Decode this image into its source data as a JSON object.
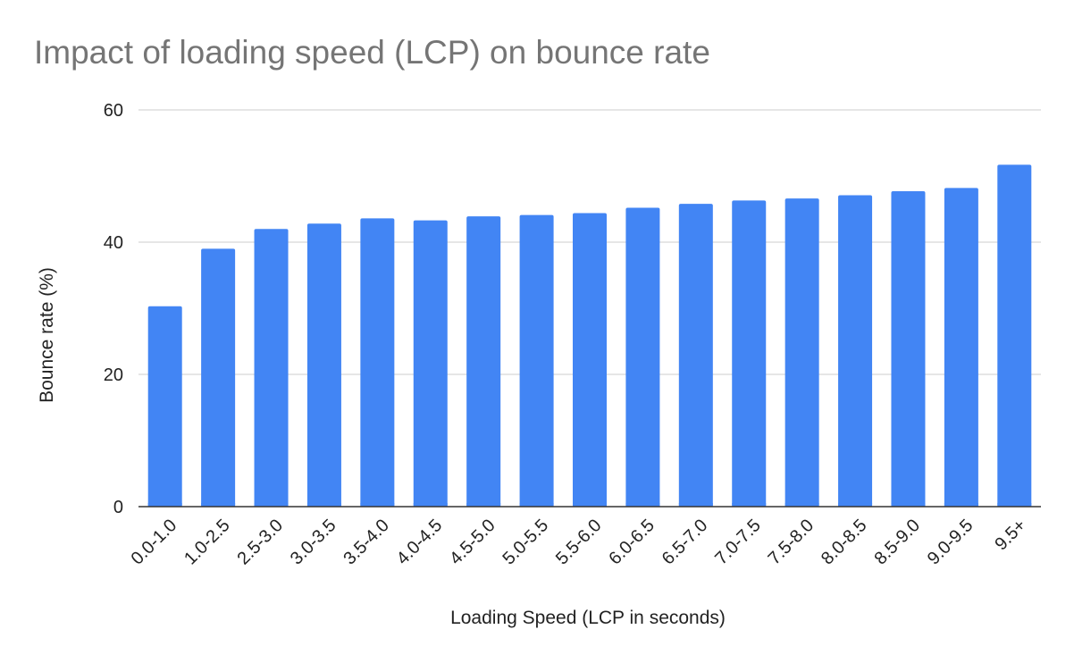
{
  "chart_data": {
    "type": "bar",
    "title": "Impact of loading speed (LCP) on bounce rate",
    "xlabel": "Loading Speed (LCP in seconds)",
    "ylabel": "Bounce rate (%)",
    "ylim": [
      0,
      60
    ],
    "yticks": [
      "0",
      "20",
      "40",
      "60"
    ],
    "grid": true,
    "legend": "none",
    "categories": [
      "0.0-1.0",
      "1.0-2.5",
      "2.5-3.0",
      "3.0-3.5",
      "3.5-4.0",
      "4.0-4.5",
      "4.5-5.0",
      "5.0-5.5",
      "5.5-6.0",
      "6.0-6.5",
      "6.5-7.0",
      "7.0-7.5",
      "7.5-8.0",
      "8.0-8.5",
      "8.5-9.0",
      "9.0-9.5",
      "9.5+"
    ],
    "series": [
      {
        "name": "Bounce rate (%)",
        "color": "#4285F4",
        "values": [
          30.3,
          39.0,
          42.0,
          42.8,
          43.6,
          43.3,
          43.9,
          44.1,
          44.4,
          45.2,
          45.8,
          46.3,
          46.6,
          47.1,
          47.7,
          48.2,
          51.7
        ]
      }
    ],
    "colors": {
      "title": "#757575",
      "grid": "#cccccc",
      "axis": "#333333",
      "text": "#222222"
    }
  }
}
